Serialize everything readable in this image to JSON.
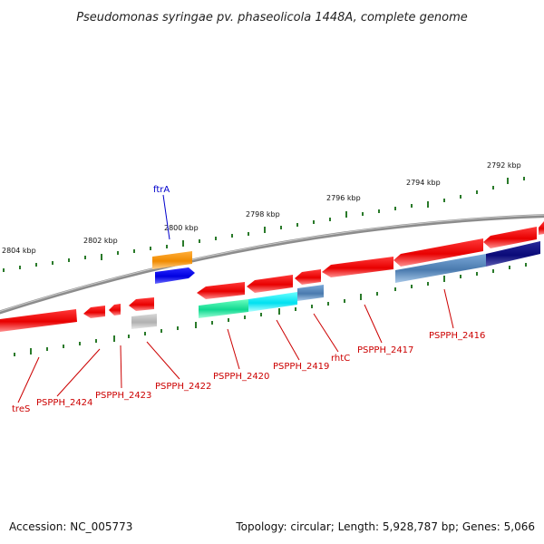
{
  "title": "Pseudomonas syringae pv. phaseolicola 1448A, complete genome",
  "footer": {
    "accession": "Accession: NC_005773",
    "summary": "Topology: circular; Length: 5,928,787 bp; Genes: 5,066"
  },
  "colors": {
    "backbone": "#8c8c8c",
    "ticks": "#2a7a2a",
    "label_red": "#cc0000",
    "label_blue": "#0000cc"
  },
  "scale_labels": [
    "2804 kbp",
    "2802 kbp",
    "2800 kbp",
    "2798 kbp",
    "2796 kbp",
    "2794 kbp",
    "2792 kbp"
  ],
  "gene_labels": [
    "ftrA",
    "treS",
    "PSPPH_2424",
    "PSPPH_2423",
    "PSPPH_2422",
    "PSPPH_2420",
    "PSPPH_2419",
    "rhtC",
    "PSPPH_2417",
    "PSPPH_2416"
  ]
}
